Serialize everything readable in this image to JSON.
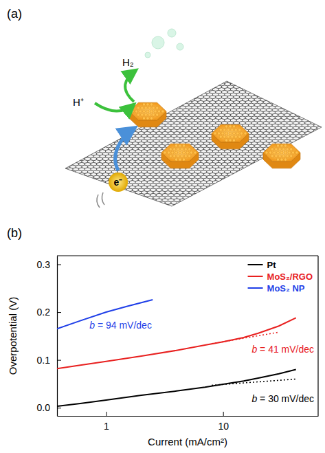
{
  "panel_a": {
    "panel_label": "(a)",
    "labels": {
      "h2": "H₂",
      "proton": "H⁺",
      "electron": "e⁻"
    }
  },
  "chart_data": {
    "type": "line",
    "panel_label": "(b)",
    "x_label": "Current (mA/cm²)",
    "y_label": "Overpotential (V)",
    "log": "x",
    "grid": false,
    "legend": "top-right",
    "xlim": [
      0.38,
      65
    ],
    "xticks": [
      1,
      10
    ],
    "ylim": [
      -0.017,
      0.318
    ],
    "yticks": [
      {
        "value": 0,
        "label": "0.0"
      },
      0.1,
      0.2,
      0.3
    ],
    "series": [
      {
        "name": "Pt",
        "color": "#000000",
        "line_style": "solid",
        "x": [
          0.38,
          0.6,
          1,
          2,
          4,
          7,
          10,
          15,
          20,
          30,
          42
        ],
        "values": [
          0.003,
          0.009,
          0.016,
          0.026,
          0.035,
          0.043,
          0.049,
          0.056,
          0.062,
          0.071,
          0.08
        ]
      },
      {
        "name": "MoS₂/RGO",
        "color": "#e8201f",
        "line_style": "solid",
        "x": [
          0.38,
          0.6,
          1,
          2,
          4,
          7,
          10,
          15,
          20,
          30,
          42
        ],
        "values": [
          0.082,
          0.089,
          0.097,
          0.108,
          0.12,
          0.131,
          0.138,
          0.147,
          0.156,
          0.171,
          0.188
        ]
      },
      {
        "name": "MoS₂ NP",
        "color": "#1f3fe8",
        "line_style": "solid",
        "x": [
          0.38,
          0.6,
          1,
          1.5,
          2.5
        ],
        "values": [
          0.165,
          0.182,
          0.2,
          0.212,
          0.226
        ]
      },
      {
        "color": "#000000",
        "line_style": "dotted",
        "x": [
          8,
          42
        ],
        "values": [
          0.047,
          0.06
        ]
      },
      {
        "color": "#e8201f",
        "line_style": "dotted",
        "x": [
          8,
          30
        ],
        "values": [
          0.134,
          0.158
        ]
      }
    ],
    "annotations": [
      {
        "text": "b = 94 mV/dec",
        "x": 0.72,
        "y": 0.165,
        "color": "#1f3fe8"
      },
      {
        "text": "b = 41 mV/dec",
        "x": 60,
        "y": 0.115,
        "color": "#e8201f"
      },
      {
        "text": "b = 30 mV/dec",
        "x": 60,
        "y": 0.012,
        "color": "#000000"
      }
    ]
  }
}
